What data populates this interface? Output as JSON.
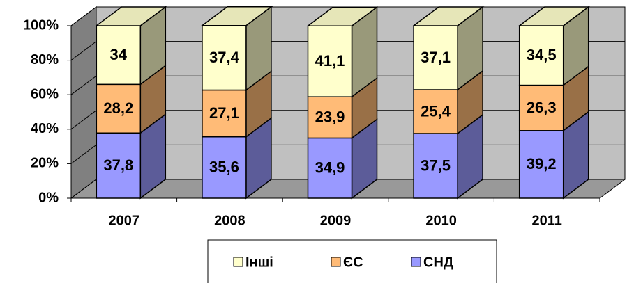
{
  "chart_data": {
    "type": "bar3d_stacked",
    "categories": [
      "2007",
      "2008",
      "2009",
      "2010",
      "2011"
    ],
    "series": [
      {
        "name": "СНД",
        "color": "#9999ff",
        "values": [
          37.8,
          35.6,
          34.9,
          37.5,
          39.2
        ],
        "value_labels": [
          "37,8",
          "35,6",
          "34,9",
          "37,5",
          "39,2"
        ]
      },
      {
        "name": "ЄС",
        "color": "#ffbb77",
        "values": [
          28.2,
          27.1,
          23.9,
          25.4,
          26.3
        ],
        "value_labels": [
          "28,2",
          "27,1",
          "23,9",
          "25,4",
          "26,3"
        ]
      },
      {
        "name": "Інші",
        "color": "#ffffcc",
        "values": [
          34,
          37.4,
          41.1,
          37.1,
          34.5
        ],
        "value_labels": [
          "34",
          "37,4",
          "41,1",
          "37,1",
          "34,5"
        ]
      }
    ],
    "ylim": [
      0,
      100
    ],
    "yticks": [
      {
        "value": 0,
        "label": "0%"
      },
      {
        "value": 20,
        "label": "20%"
      },
      {
        "value": 40,
        "label": "40%"
      },
      {
        "value": 60,
        "label": "60%"
      },
      {
        "value": 80,
        "label": "80%"
      },
      {
        "value": 100,
        "label": "100%"
      }
    ],
    "grid": true,
    "legend": "bottom"
  }
}
